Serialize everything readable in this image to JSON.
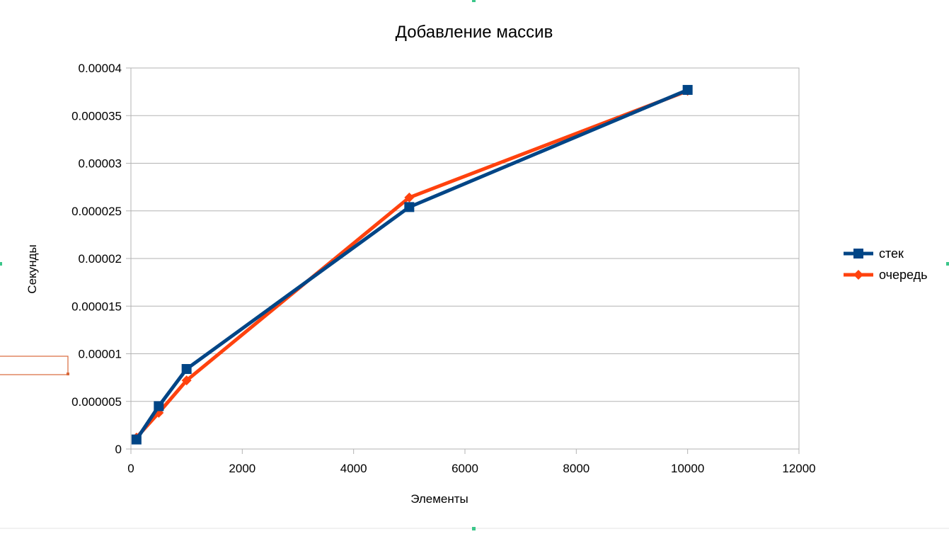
{
  "chart_data": {
    "type": "line",
    "title": "Добавление массив",
    "xlabel": "Элементы",
    "ylabel": "Секунды",
    "xlim": [
      0,
      12000
    ],
    "ylim": [
      0,
      4e-05
    ],
    "x_ticks": [
      0,
      2000,
      4000,
      6000,
      8000,
      10000,
      12000
    ],
    "x_tick_labels": [
      "0",
      "2000",
      "4000",
      "6000",
      "8000",
      "10000",
      "12000"
    ],
    "y_ticks": [
      0,
      5e-06,
      1e-05,
      1.5e-05,
      2e-05,
      2.5e-05,
      3e-05,
      3.5e-05,
      4e-05
    ],
    "y_tick_labels": [
      "0",
      "0.000005",
      "0.00001",
      "0.000015",
      "0.00002",
      "0.000025",
      "0.00003",
      "0.000035",
      "0.00004"
    ],
    "grid": true,
    "legend_position": "right",
    "series": [
      {
        "name": "стек",
        "color": "#004586",
        "marker": "square",
        "x": [
          100,
          500,
          1000,
          5000,
          10000
        ],
        "y": [
          1e-06,
          4.5e-06,
          8.4e-06,
          2.54e-05,
          3.77e-05
        ]
      },
      {
        "name": "очередь",
        "color": "#ff420e",
        "marker": "diamond",
        "x": [
          100,
          500,
          1000,
          5000,
          10000
        ],
        "y": [
          1.2e-06,
          3.8e-06,
          7.2e-06,
          2.64e-05,
          3.76e-05
        ]
      }
    ]
  }
}
